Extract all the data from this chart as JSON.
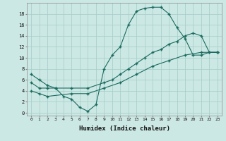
{
  "xlabel": "Humidex (Indice chaleur)",
  "background_color": "#cce8e4",
  "grid_color": "#aacfcb",
  "line_color": "#1a6b60",
  "x_ticks": [
    0,
    1,
    2,
    3,
    4,
    5,
    6,
    7,
    8,
    9,
    10,
    11,
    12,
    13,
    14,
    15,
    16,
    17,
    18,
    19,
    20,
    21,
    22,
    23
  ],
  "y_ticks": [
    0,
    2,
    4,
    6,
    8,
    10,
    12,
    14,
    16,
    18
  ],
  "xlim": [
    -0.5,
    23.5
  ],
  "ylim": [
    -0.5,
    20.0
  ],
  "line1_x": [
    0,
    1,
    2,
    3,
    4,
    5,
    6,
    7,
    8,
    9,
    10,
    11,
    12,
    13,
    14,
    15,
    16,
    17,
    18,
    19,
    20,
    21,
    22,
    23
  ],
  "line1_y": [
    7.0,
    6.0,
    5.0,
    4.5,
    3.0,
    2.5,
    1.0,
    0.3,
    1.5,
    8.0,
    10.5,
    12.0,
    16.0,
    18.5,
    19.0,
    19.2,
    19.2,
    18.0,
    15.5,
    13.5,
    10.5,
    10.5,
    11.0,
    11.0
  ],
  "line2_x": [
    0,
    1,
    2,
    3,
    5,
    7,
    9,
    10,
    11,
    12,
    13,
    14,
    15,
    16,
    17,
    18,
    19,
    20,
    21,
    22,
    23
  ],
  "line2_y": [
    5.5,
    4.5,
    4.5,
    4.5,
    4.5,
    4.5,
    5.5,
    6.0,
    7.0,
    8.0,
    9.0,
    10.0,
    11.0,
    11.5,
    12.5,
    13.0,
    14.0,
    14.5,
    14.0,
    11.0,
    11.0
  ],
  "line3_x": [
    0,
    1,
    2,
    5,
    7,
    9,
    11,
    13,
    15,
    17,
    19,
    21,
    23
  ],
  "line3_y": [
    4.0,
    3.5,
    3.0,
    3.5,
    3.5,
    4.5,
    5.5,
    7.0,
    8.5,
    9.5,
    10.5,
    11.0,
    11.0
  ]
}
